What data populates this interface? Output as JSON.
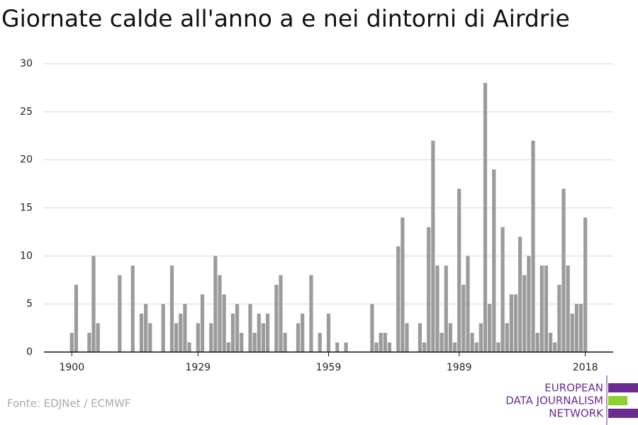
{
  "chart_data": {
    "type": "bar",
    "title": "Giornate calde all'anno a e nei dintorni di Airdrie",
    "source": "Fonte: EDJNet / ECMWF",
    "logo": [
      "EUROPEAN",
      "DATA JOURNALISM",
      "NETWORK"
    ],
    "color": "#9b9b9b",
    "x": [
      1900,
      1901,
      1902,
      1903,
      1904,
      1905,
      1906,
      1907,
      1908,
      1909,
      1910,
      1911,
      1912,
      1913,
      1914,
      1915,
      1916,
      1917,
      1918,
      1919,
      1920,
      1921,
      1922,
      1923,
      1924,
      1925,
      1926,
      1927,
      1928,
      1929,
      1930,
      1931,
      1932,
      1933,
      1934,
      1935,
      1936,
      1937,
      1938,
      1939,
      1940,
      1941,
      1942,
      1943,
      1944,
      1945,
      1946,
      1947,
      1948,
      1949,
      1950,
      1951,
      1952,
      1953,
      1954,
      1955,
      1956,
      1957,
      1958,
      1959,
      1960,
      1961,
      1962,
      1963,
      1964,
      1965,
      1966,
      1967,
      1968,
      1969,
      1970,
      1971,
      1972,
      1973,
      1974,
      1975,
      1976,
      1977,
      1978,
      1979,
      1980,
      1981,
      1982,
      1983,
      1984,
      1985,
      1986,
      1987,
      1988,
      1989,
      1990,
      1991,
      1992,
      1993,
      1994,
      1995,
      1996,
      1997,
      1998,
      1999,
      2000,
      2001,
      2002,
      2003,
      2004,
      2005,
      2006,
      2007,
      2008,
      2009,
      2010,
      2011,
      2012,
      2013,
      2014,
      2015,
      2016,
      2017,
      2018
    ],
    "values": [
      2,
      7,
      0,
      0,
      2,
      10,
      3,
      0,
      0,
      0,
      0,
      8,
      0,
      0,
      9,
      0,
      4,
      5,
      3,
      0,
      0,
      5,
      0,
      9,
      3,
      4,
      5,
      1,
      0,
      3,
      6,
      0,
      3,
      10,
      8,
      6,
      1,
      4,
      5,
      2,
      0,
      5,
      2,
      4,
      3,
      4,
      0,
      7,
      8,
      2,
      0,
      0,
      3,
      4,
      0,
      8,
      0,
      2,
      0,
      4,
      0,
      1,
      0,
      1,
      0,
      0,
      0,
      0,
      0,
      5,
      1,
      2,
      2,
      1,
      0,
      11,
      14,
      3,
      0,
      0,
      3,
      1,
      13,
      22,
      9,
      2,
      9,
      3,
      1,
      17,
      7,
      10,
      2,
      1,
      3,
      28,
      5,
      19,
      1,
      13,
      3,
      6,
      6,
      12,
      8,
      10,
      22,
      2,
      9,
      9,
      2,
      1,
      7,
      17,
      9,
      4,
      5,
      5,
      14
    ],
    "xlim": [
      1893.6,
      2024.4
    ],
    "xticks": [
      1900,
      1929,
      1959,
      1989,
      2018
    ],
    "ylim": [
      0,
      30
    ],
    "yticks": [
      0,
      5,
      10,
      15,
      20,
      25,
      30
    ],
    "grid": true
  }
}
